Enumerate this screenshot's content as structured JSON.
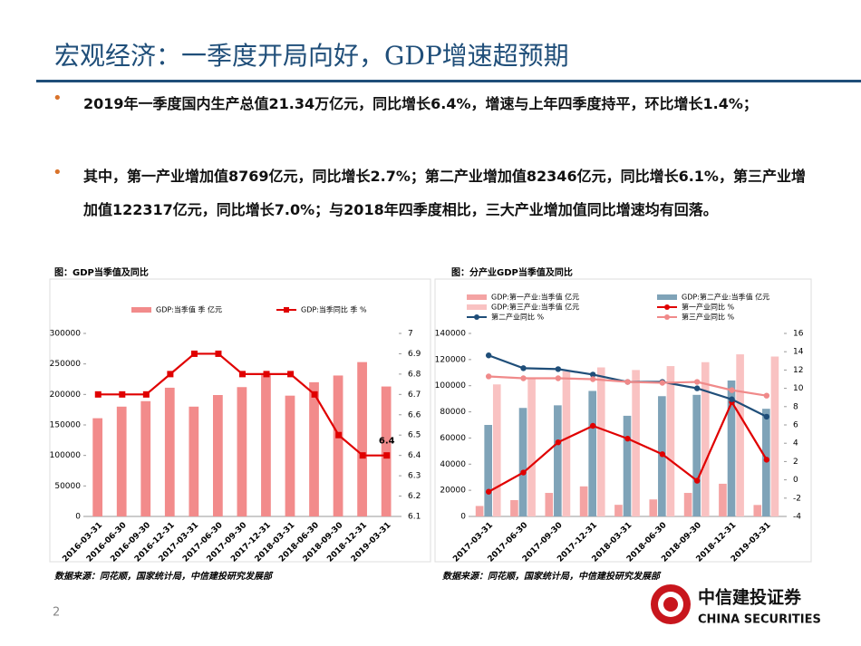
{
  "header": {
    "title": "宏观经济：一季度开局向好，GDP增速超预期"
  },
  "bullets": [
    "2019年一季度国内生产总值21.34万亿元，同比增长6.4%，增速与上年四季度持平，环比增长1.4%；",
    "其中，第一产业增加值8769亿元，同比增长2.7%；第二产业增加值82346亿元，同比增长6.1%，第三产业增加值122317亿元，同比增长7.0%；与2018年四季度相比，三大产业增加值同比增速均有回落。"
  ],
  "captions": [
    "图：GDP当季值及同比",
    "图：分产业GDP当季值及同比"
  ],
  "sources": [
    "数据来源：同花顺，国家统计局，中信建投研究发展部",
    "数据来源：同花顺，国家统计局，中信建投研究发展部"
  ],
  "footer": {
    "page": "2",
    "logo_cn": "中信建投证券",
    "logo_en": "CHINA SECURITIES"
  },
  "chart_data": [
    {
      "type": "combo",
      "categories": [
        "2016-03-31",
        "2016-06-30",
        "2016-09-30",
        "2016-12-31",
        "2017-03-31",
        "2017-06-30",
        "2017-09-30",
        "2017-12-31",
        "2018-03-31",
        "2018-06-30",
        "2018-09-30",
        "2018-12-31",
        "2019-03-31"
      ],
      "series": [
        {
          "name": "GDP:当季值 季 亿元",
          "type": "bar",
          "color": "#f28b8b",
          "values": [
            161000,
            180000,
            189000,
            211000,
            180000,
            199000,
            212000,
            233000,
            198000,
            220000,
            231000,
            253000,
            213000
          ]
        },
        {
          "name": "GDP:当季同比 季 %",
          "type": "line",
          "axis": "y2",
          "marker": "square",
          "color": "#e00000",
          "values": [
            6.7,
            6.7,
            6.7,
            6.8,
            6.9,
            6.9,
            6.8,
            6.8,
            6.8,
            6.7,
            6.5,
            6.4,
            6.4
          ]
        }
      ],
      "ylim": [
        0,
        300000
      ],
      "yticks": [
        0,
        50000,
        100000,
        150000,
        200000,
        250000,
        300000
      ],
      "y2lim": [
        6.1,
        7
      ],
      "y2ticks": [
        6.1,
        6.2,
        6.3,
        6.4,
        6.5,
        6.6,
        6.7,
        6.8,
        6.9,
        7
      ]
    },
    {
      "type": "combo",
      "categories": [
        "2017-03-31",
        "2017-06-30",
        "2017-09-30",
        "2017-12-31",
        "2018-03-31",
        "2018-06-30",
        "2018-09-30",
        "2018-12-31",
        "2019-03-31"
      ],
      "series": [
        {
          "name": "GDP:第一产业:当季值 亿元",
          "type": "bar",
          "color": "#f4a3a3",
          "values": [
            8000,
            12500,
            18000,
            23000,
            8900,
            13000,
            18000,
            25000,
            8769
          ]
        },
        {
          "name": "GDP:第二产业:当季值 亿元",
          "type": "bar",
          "color": "#7fa3b8",
          "values": [
            70000,
            83000,
            85000,
            96000,
            77000,
            92000,
            93000,
            104000,
            82346
          ]
        },
        {
          "name": "GDP:第三产业:当季值 亿元",
          "type": "bar",
          "color": "#f9c2c2",
          "values": [
            101000,
            105000,
            111000,
            114000,
            112000,
            115000,
            118000,
            124000,
            122317
          ]
        },
        {
          "name": "第一产业同比 %",
          "type": "line",
          "axis": "y2",
          "marker": "circle",
          "color": "#e00000",
          "values": [
            -1.3,
            0.8,
            4.1,
            5.9,
            4.5,
            2.8,
            -0.1,
            8.5,
            2.2
          ]
        },
        {
          "name": "第二产业同比 %",
          "type": "line",
          "axis": "y2",
          "marker": "circle",
          "color": "#1f4e79",
          "values": [
            13.6,
            12.2,
            12.1,
            11.5,
            10.7,
            10.7,
            10,
            8.8,
            6.9
          ]
        },
        {
          "name": "第三产业同比 %",
          "type": "line",
          "axis": "y2",
          "marker": "circle",
          "color": "#f08a8a",
          "values": [
            11.3,
            11.1,
            11.1,
            11,
            10.7,
            10.6,
            10.7,
            9.8,
            9.2
          ]
        }
      ],
      "ylim": [
        0,
        140000
      ],
      "yticks": [
        0,
        20000,
        40000,
        60000,
        80000,
        100000,
        120000,
        140000
      ],
      "y2lim": [
        -4,
        16
      ],
      "y2ticks": [
        -4,
        -2,
        0,
        2,
        4,
        6,
        8,
        10,
        12,
        14,
        16
      ]
    }
  ]
}
